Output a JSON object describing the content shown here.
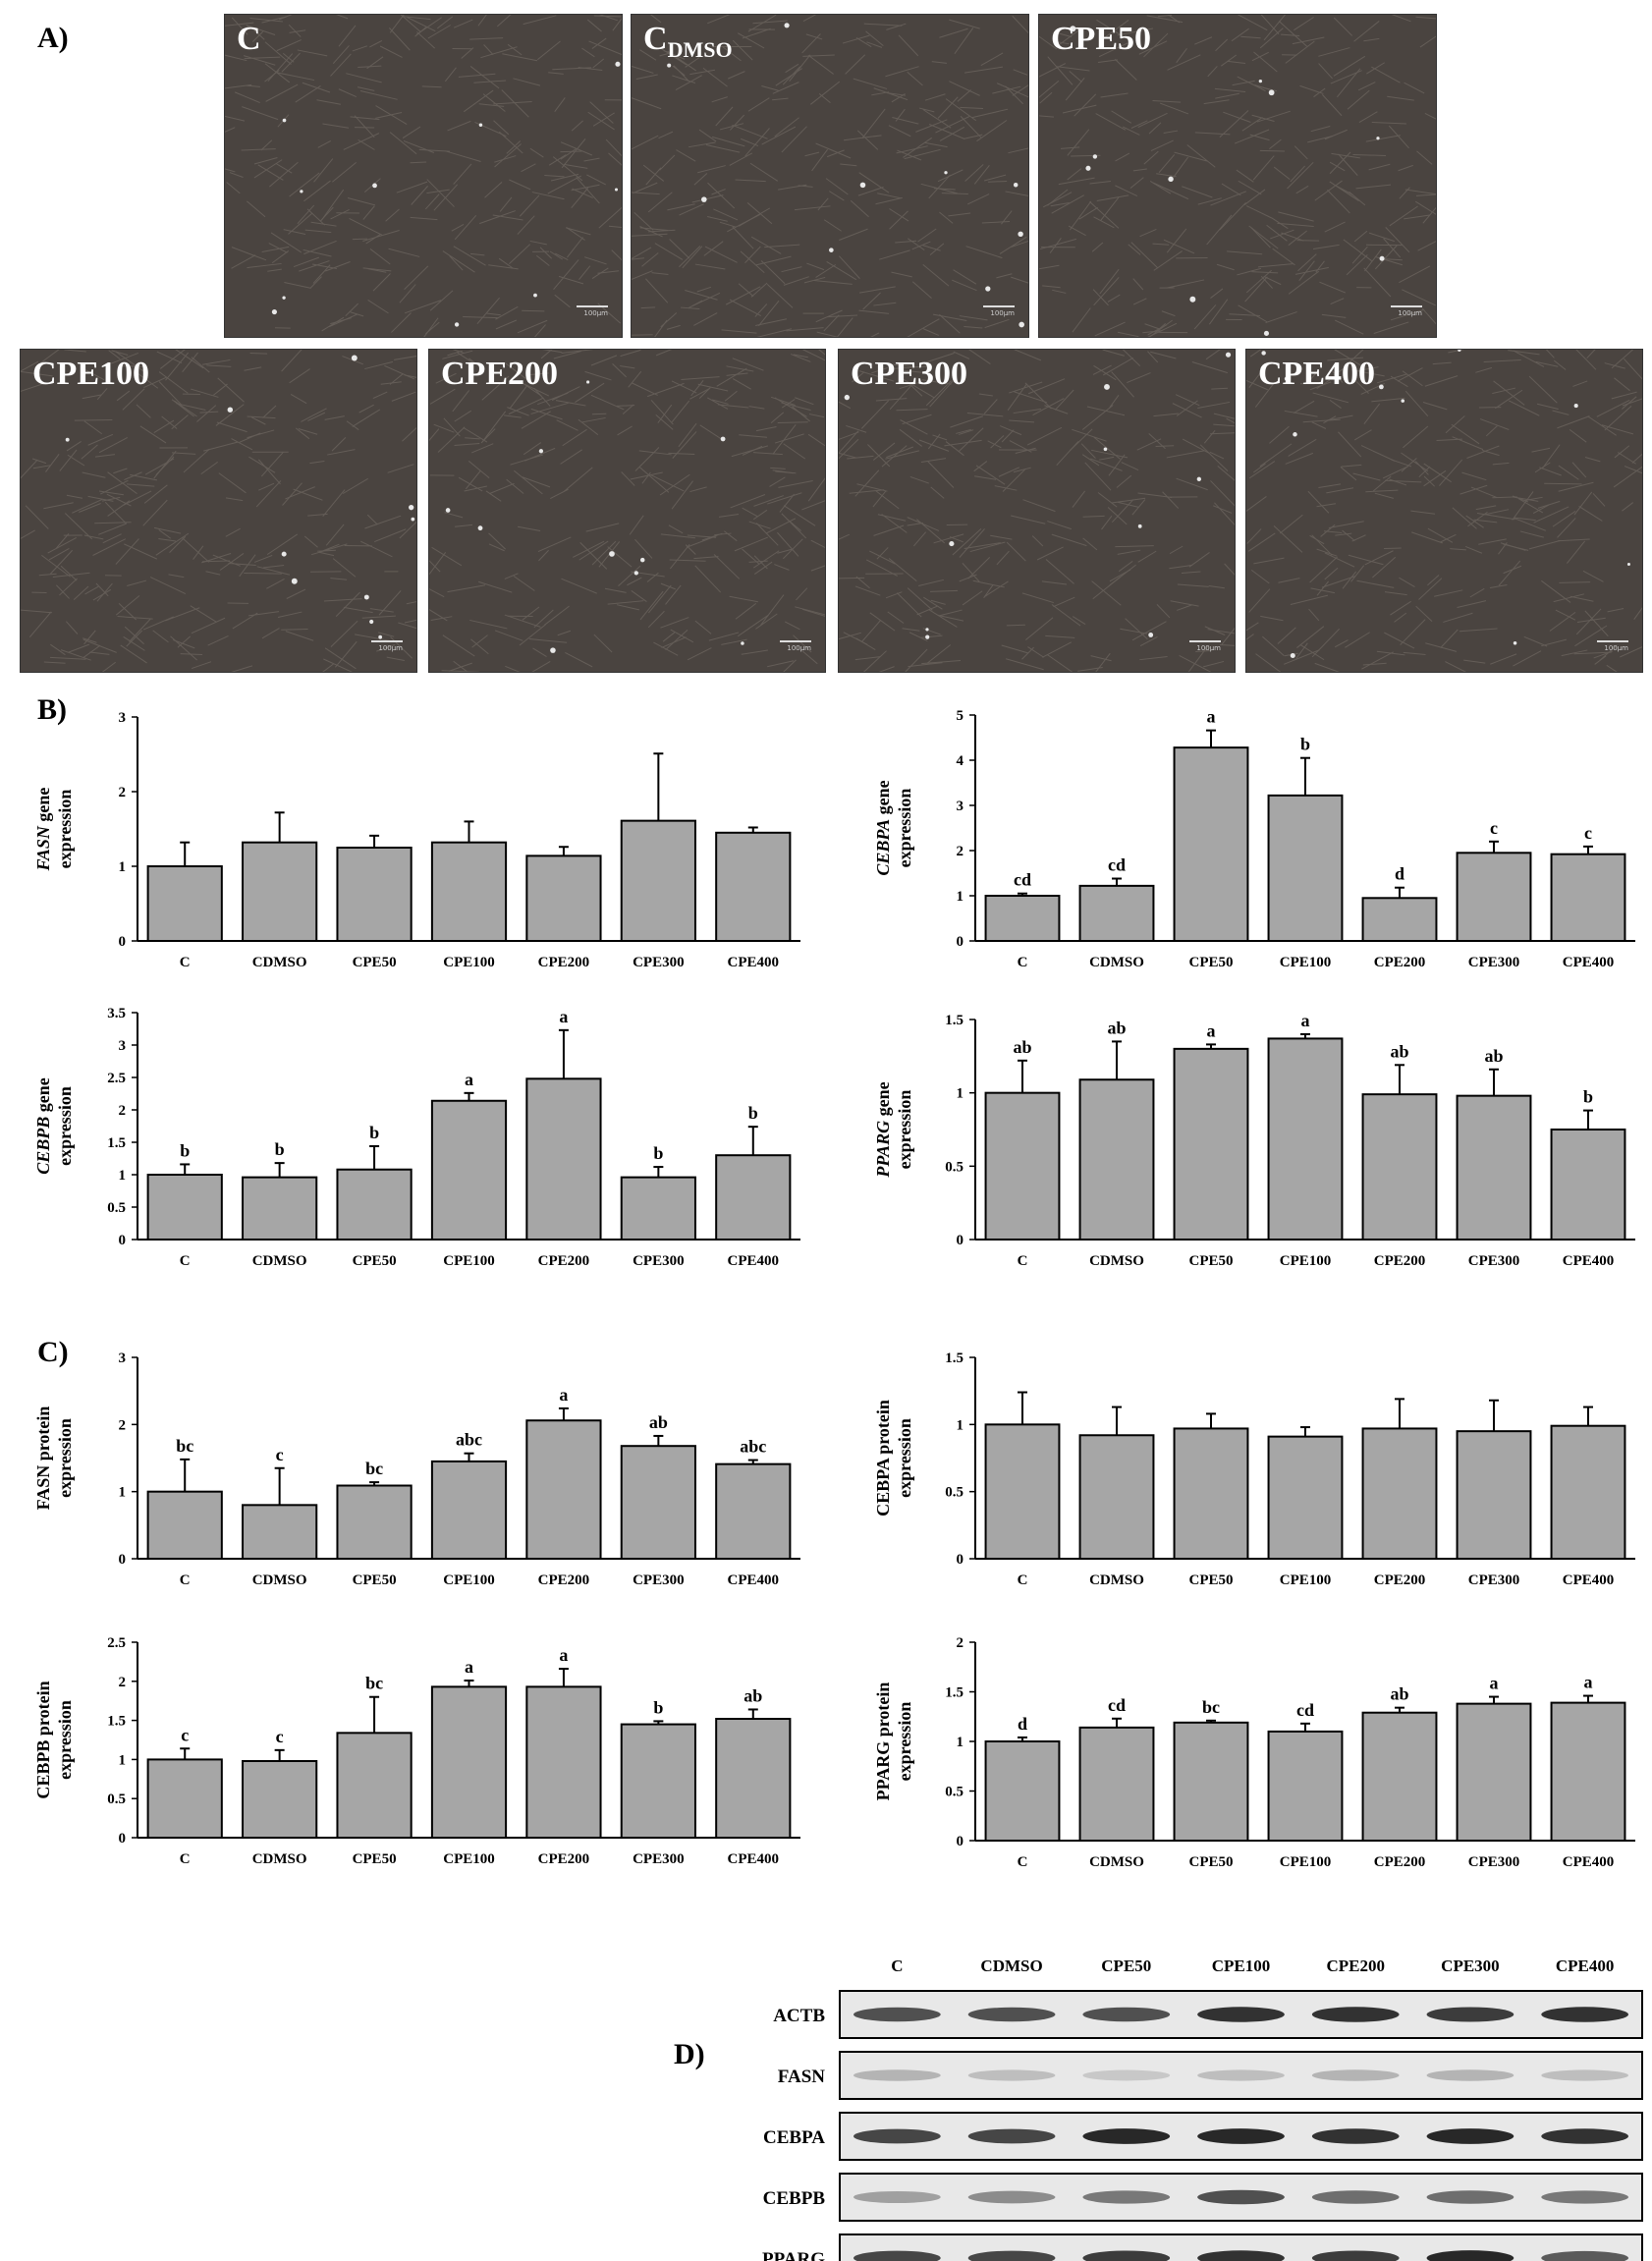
{
  "panels": {
    "a": "A)",
    "b": "B)",
    "c": "C)",
    "d": "D)"
  },
  "micrographs": [
    {
      "label": "C",
      "sub": "",
      "scale_label": "100μm"
    },
    {
      "label": "C",
      "sub": "DMSO",
      "scale_label": "100μm"
    },
    {
      "label": "CPE50",
      "sub": "",
      "scale_label": "100μm"
    },
    {
      "label": "CPE100",
      "sub": "",
      "scale_label": "100μm"
    },
    {
      "label": "CPE200",
      "sub": "",
      "scale_label": "100μm"
    },
    {
      "label": "CPE300",
      "sub": "",
      "scale_label": "100μm"
    },
    {
      "label": "CPE400",
      "sub": "",
      "scale_label": "100μm"
    }
  ],
  "colors": {
    "bar": "#a6a6a6",
    "axis": "#000000",
    "cell_bg": "#4a4440"
  },
  "chart_data": [
    {
      "id": "fasn-gene",
      "type": "bar",
      "ylabel_italic": "FASN",
      "ylabel_rest": " gene",
      "ylabel_line2": "expression",
      "categories": [
        "C",
        "CDMSO",
        "CPE50",
        "CPE100",
        "CPE200",
        "CPE300",
        "CPE400"
      ],
      "values": [
        1.0,
        1.32,
        1.25,
        1.32,
        1.14,
        1.61,
        1.45
      ],
      "errors": [
        0.32,
        0.4,
        0.16,
        0.28,
        0.12,
        0.9,
        0.07
      ],
      "letters": [
        "",
        "",
        "",
        "",
        "",
        "",
        ""
      ],
      "ylim": [
        0,
        3
      ],
      "yticks": [
        "0",
        "1",
        "2",
        "3"
      ]
    },
    {
      "id": "cebpa-gene",
      "type": "bar",
      "ylabel_italic": "CEBPA",
      "ylabel_rest": " gene",
      "ylabel_line2": "expression",
      "categories": [
        "C",
        "CDMSO",
        "CPE50",
        "CPE100",
        "CPE200",
        "CPE300",
        "CPE400"
      ],
      "values": [
        1.0,
        1.22,
        4.28,
        3.22,
        0.95,
        1.95,
        1.92
      ],
      "errors": [
        0.05,
        0.16,
        0.38,
        0.83,
        0.23,
        0.25,
        0.17
      ],
      "letters": [
        "cd",
        "cd",
        "a",
        "b",
        "d",
        "c",
        "c"
      ],
      "ylim": [
        0,
        5
      ],
      "yticks": [
        "0",
        "1",
        "2",
        "3",
        "4",
        "5"
      ]
    },
    {
      "id": "cebpb-gene",
      "type": "bar",
      "ylabel_italic": "CEBPB",
      "ylabel_rest": " gene",
      "ylabel_line2": "expression",
      "categories": [
        "C",
        "CDMSO",
        "CPE50",
        "CPE100",
        "CPE200",
        "CPE300",
        "CPE400"
      ],
      "values": [
        1.0,
        0.96,
        1.08,
        2.14,
        2.48,
        0.96,
        1.3
      ],
      "errors": [
        0.16,
        0.22,
        0.36,
        0.12,
        0.75,
        0.16,
        0.44
      ],
      "letters": [
        "b",
        "b",
        "b",
        "a",
        "a",
        "b",
        "b"
      ],
      "ylim": [
        0,
        3.5
      ],
      "yticks": [
        "0",
        "0.5",
        "1",
        "1.5",
        "2",
        "2.5",
        "3",
        "3.5"
      ]
    },
    {
      "id": "pparg-gene",
      "type": "bar",
      "ylabel_italic": "PPARG",
      "ylabel_rest": " gene",
      "ylabel_line2": "expression",
      "categories": [
        "C",
        "CDMSO",
        "CPE50",
        "CPE100",
        "CPE200",
        "CPE300",
        "CPE400"
      ],
      "values": [
        1.0,
        1.09,
        1.3,
        1.37,
        0.99,
        0.98,
        0.75
      ],
      "errors": [
        0.22,
        0.26,
        0.03,
        0.03,
        0.2,
        0.18,
        0.13
      ],
      "letters": [
        "ab",
        "ab",
        "a",
        "a",
        "ab",
        "ab",
        "b"
      ],
      "ylim": [
        0,
        1.5
      ],
      "yticks": [
        "0",
        "0.5",
        "1",
        "1.5"
      ]
    },
    {
      "id": "fasn-protein",
      "type": "bar",
      "ylabel_italic": "",
      "ylabel_rest": "FASN protein",
      "ylabel_line2": "expression",
      "categories": [
        "C",
        "CDMSO",
        "CPE50",
        "CPE100",
        "CPE200",
        "CPE300",
        "CPE400"
      ],
      "values": [
        1.0,
        0.8,
        1.09,
        1.45,
        2.06,
        1.68,
        1.41
      ],
      "errors": [
        0.48,
        0.55,
        0.05,
        0.12,
        0.18,
        0.15,
        0.06
      ],
      "letters": [
        "bc",
        "c",
        "bc",
        "abc",
        "a",
        "ab",
        "abc"
      ],
      "ylim": [
        0,
        3
      ],
      "yticks": [
        "0",
        "1",
        "2",
        "3"
      ]
    },
    {
      "id": "cebpa-protein",
      "type": "bar",
      "ylabel_italic": "",
      "ylabel_rest": "CEBPA protein",
      "ylabel_line2": "expression",
      "categories": [
        "C",
        "CDMSO",
        "CPE50",
        "CPE100",
        "CPE200",
        "CPE300",
        "CPE400"
      ],
      "values": [
        1.0,
        0.92,
        0.97,
        0.91,
        0.97,
        0.95,
        0.99
      ],
      "errors": [
        0.24,
        0.21,
        0.11,
        0.07,
        0.22,
        0.23,
        0.14
      ],
      "letters": [
        "",
        "",
        "",
        "",
        "",
        "",
        ""
      ],
      "ylim": [
        0,
        1.5
      ],
      "yticks": [
        "0",
        "0.5",
        "1",
        "1.5"
      ]
    },
    {
      "id": "cebpb-protein",
      "type": "bar",
      "ylabel_italic": "",
      "ylabel_rest": "CEBPB protein",
      "ylabel_line2": "expression",
      "categories": [
        "C",
        "CDMSO",
        "CPE50",
        "CPE100",
        "CPE200",
        "CPE300",
        "CPE400"
      ],
      "values": [
        1.0,
        0.98,
        1.34,
        1.93,
        1.93,
        1.45,
        1.52
      ],
      "errors": [
        0.14,
        0.14,
        0.46,
        0.08,
        0.23,
        0.04,
        0.12
      ],
      "letters": [
        "c",
        "c",
        "bc",
        "a",
        "a",
        "b",
        "ab"
      ],
      "ylim": [
        0,
        2.5
      ],
      "yticks": [
        "0",
        "0.5",
        "1",
        "1.5",
        "2",
        "2.5"
      ]
    },
    {
      "id": "pparg-protein",
      "type": "bar",
      "ylabel_italic": "",
      "ylabel_rest": "PPARG protein",
      "ylabel_line2": "expression",
      "categories": [
        "C",
        "CDMSO",
        "CPE50",
        "CPE100",
        "CPE200",
        "CPE300",
        "CPE400"
      ],
      "values": [
        1.0,
        1.14,
        1.19,
        1.1,
        1.29,
        1.38,
        1.39
      ],
      "errors": [
        0.04,
        0.09,
        0.02,
        0.08,
        0.05,
        0.07,
        0.07
      ],
      "letters": [
        "d",
        "cd",
        "bc",
        "cd",
        "ab",
        "a",
        "a"
      ],
      "ylim": [
        0,
        2
      ],
      "yticks": [
        "0",
        "0.5",
        "1",
        "1.5",
        "2"
      ]
    }
  ],
  "western": {
    "lanes": [
      "C",
      "CDMSO",
      "CPE50",
      "CPE100",
      "CPE200",
      "CPE300",
      "CPE400"
    ],
    "rows": [
      {
        "name": "ACTB",
        "intensity": [
          0.75,
          0.75,
          0.75,
          0.9,
          0.9,
          0.85,
          0.9
        ]
      },
      {
        "name": "FASN",
        "intensity": [
          0.25,
          0.2,
          0.15,
          0.2,
          0.25,
          0.25,
          0.2
        ]
      },
      {
        "name": "CEBPA",
        "intensity": [
          0.8,
          0.8,
          0.95,
          0.95,
          0.9,
          0.95,
          0.9
        ]
      },
      {
        "name": "CEBPB",
        "intensity": [
          0.35,
          0.45,
          0.55,
          0.75,
          0.6,
          0.6,
          0.55
        ]
      },
      {
        "name": "PPARG",
        "intensity": [
          0.8,
          0.8,
          0.85,
          0.9,
          0.85,
          0.95,
          0.7
        ]
      }
    ]
  }
}
